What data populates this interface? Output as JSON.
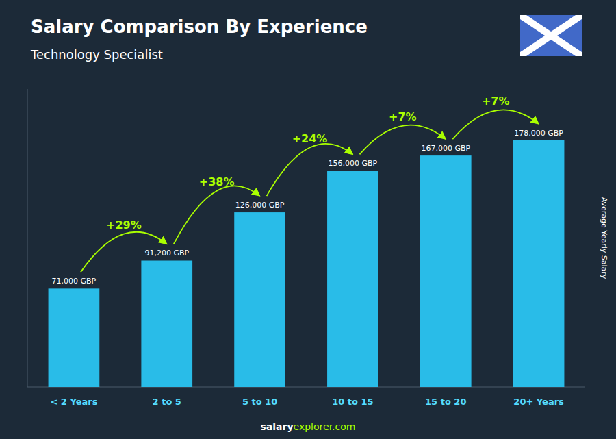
{
  "chart_data": {
    "type": "bar",
    "title": "Salary Comparison By Experience",
    "subtitle": "Technology Specialist",
    "categories": [
      "< 2 Years",
      "2 to 5",
      "5 to 10",
      "10 to 15",
      "15 to 20",
      "20+ Years"
    ],
    "values": [
      71000,
      91200,
      126000,
      156000,
      167000,
      178000
    ],
    "value_labels": [
      "71,000 GBP",
      "91,200 GBP",
      "126,000 GBP",
      "156,000 GBP",
      "167,000 GBP",
      "178,000 GBP"
    ],
    "data_labels": true,
    "color": "#29bce8",
    "ylim": [
      0,
      215000
    ],
    "tick_labels": "x",
    "grid": false,
    "ylabel": "Average Yearly Salary",
    "annotations": [
      "+29%",
      "+38%",
      "+24%",
      "+7%",
      "+7%"
    ],
    "footer": [
      "salary",
      "explorer.com"
    ]
  }
}
